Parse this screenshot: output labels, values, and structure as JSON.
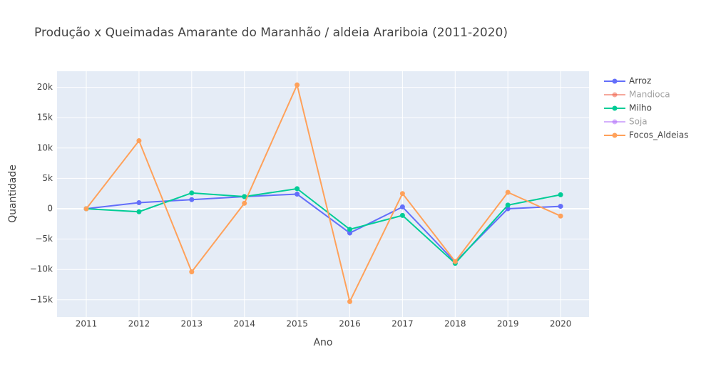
{
  "chart_data": {
    "type": "line",
    "title": "Produção x Queimadas Amarante do Maranhão / aldeia Arariboia  (2011-2020)",
    "x_label": "Ano",
    "y_label": "Quantidade",
    "x": [
      2011,
      2012,
      2013,
      2014,
      2015,
      2016,
      2017,
      2018,
      2019,
      2020
    ],
    "series": [
      {
        "name": "Arroz",
        "color": "#636efa",
        "visible": true,
        "values": [
          0,
          1000,
          1500,
          2000,
          2400,
          -4000,
          300,
          -8800,
          0,
          400
        ]
      },
      {
        "name": "Mandioca",
        "color": "#EF553B",
        "visible": false,
        "values": [
          null,
          null,
          null,
          null,
          null,
          null,
          null,
          null,
          null,
          null
        ]
      },
      {
        "name": "Milho",
        "color": "#00cc96",
        "visible": true,
        "values": [
          0,
          -500,
          2600,
          2000,
          3300,
          -3400,
          -1100,
          -9000,
          600,
          2300
        ]
      },
      {
        "name": "Soja",
        "color": "#ab63fa",
        "visible": false,
        "values": [
          null,
          null,
          null,
          null,
          null,
          null,
          null,
          null,
          null,
          null
        ]
      },
      {
        "name": "Focos_Aldeias",
        "color": "#FFA15A",
        "visible": true,
        "values": [
          0,
          11200,
          -10400,
          900,
          20400,
          -15300,
          2500,
          -8700,
          2700,
          -1200
        ]
      }
    ],
    "xlim": [
      2010.445,
      2020.54
    ],
    "xticks": [
      2011,
      2012,
      2013,
      2014,
      2015,
      2016,
      2017,
      2018,
      2019,
      2020
    ],
    "ylim": [
      -17840,
      22650
    ],
    "yticks": [
      {
        "value": -15000,
        "label": "−15k"
      },
      {
        "value": -10000,
        "label": "−10k"
      },
      {
        "value": -5000,
        "label": "−5k"
      },
      0,
      {
        "value": 5000,
        "label": "5k"
      },
      {
        "value": 10000,
        "label": "10k"
      },
      {
        "value": 15000,
        "label": "15k"
      },
      {
        "value": 20000,
        "label": "20k"
      }
    ],
    "grid": true,
    "legend": "right"
  }
}
